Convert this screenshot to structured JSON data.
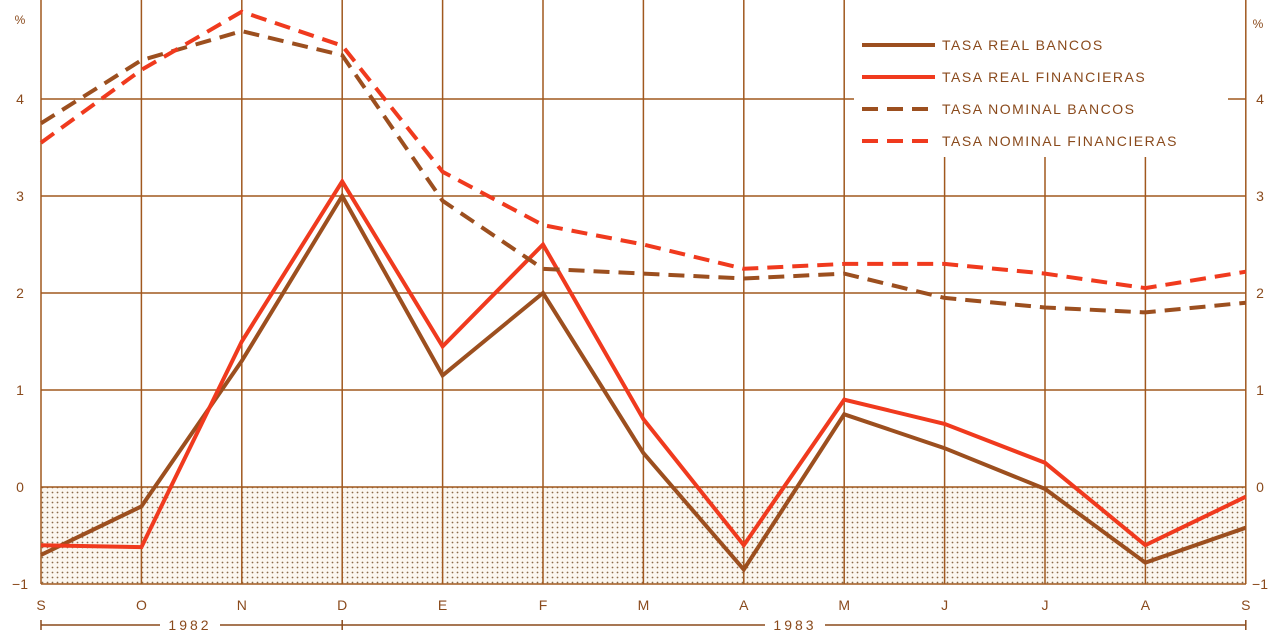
{
  "chart_data": {
    "type": "line",
    "y_unit": "%",
    "categories": [
      "S",
      "O",
      "N",
      "D",
      "E",
      "F",
      "M",
      "A",
      "M",
      "J",
      "J",
      "A",
      "S"
    ],
    "year_labels": [
      "1982",
      "1983"
    ],
    "ylim": [
      -1,
      5
    ],
    "yticks": [
      -1,
      0,
      1,
      2,
      3,
      4
    ],
    "grid": true,
    "negative_region_shaded": true,
    "legend_position": "top-right",
    "series": [
      {
        "name": "TASA REAL BANCOS",
        "style": "solid",
        "color": "#9c4f1f",
        "values": [
          -0.7,
          -0.2,
          1.3,
          3.0,
          1.15,
          2.0,
          0.35,
          -0.85,
          0.75,
          0.4,
          -0.02,
          -0.78,
          -0.42
        ]
      },
      {
        "name": "TASA REAL FINANCIERAS",
        "style": "solid",
        "color": "#f03a1e",
        "values": [
          -0.6,
          -0.62,
          1.5,
          3.15,
          1.45,
          2.5,
          0.7,
          -0.6,
          0.9,
          0.65,
          0.25,
          -0.6,
          -0.1
        ]
      },
      {
        "name": "TASA NOMINAL BANCOS",
        "style": "dashed",
        "color": "#9c4f1f",
        "values": [
          3.75,
          4.4,
          4.7,
          4.45,
          2.95,
          2.25,
          2.2,
          2.15,
          2.2,
          1.95,
          1.85,
          1.8,
          1.9
        ]
      },
      {
        "name": "TASA NOMINAL FINANCIERAS",
        "style": "dashed",
        "color": "#f03a1e",
        "values": [
          3.55,
          4.3,
          4.9,
          4.55,
          3.25,
          2.7,
          2.5,
          2.25,
          2.3,
          2.3,
          2.2,
          2.05,
          2.22
        ]
      }
    ]
  },
  "colors": {
    "axis": "#8a4a1c",
    "grid": "#a0581e",
    "shade": "#e9d9c8"
  }
}
